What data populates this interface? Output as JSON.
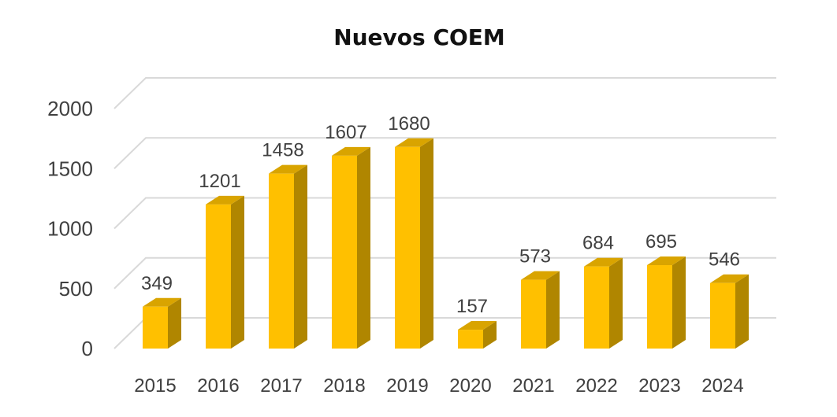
{
  "chart_data": {
    "type": "bar",
    "title": "Nuevos COEM",
    "xlabel": "",
    "ylabel": "",
    "categories": [
      "2015",
      "2016",
      "2017",
      "2018",
      "2019",
      "2020",
      "2021",
      "2022",
      "2023",
      "2024"
    ],
    "values": [
      349,
      1201,
      1458,
      1607,
      1680,
      157,
      573,
      684,
      695,
      546
    ],
    "data_labels": [
      "349",
      "1201",
      "1458",
      "1607",
      "1680",
      "157",
      "573",
      "684",
      "695",
      "546"
    ],
    "y_ticks": [
      "0",
      "500",
      "1000",
      "1500",
      "2000"
    ],
    "ylim": [
      0,
      2000
    ],
    "grid": true,
    "legend": "none",
    "three_d": true,
    "colors": {
      "bar_front": "#FFC000",
      "bar_side": "#B08600",
      "bar_top": "#D9A400",
      "grid": "#D9D9D9",
      "text": "#404040",
      "title": "#111111"
    }
  }
}
